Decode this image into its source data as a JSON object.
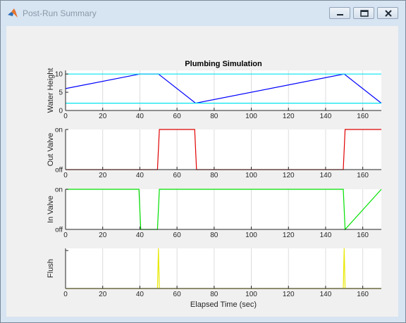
{
  "window": {
    "title": "Post-Run Summary",
    "controls": [
      "minimize",
      "maximize",
      "close"
    ]
  },
  "chart_data": [
    {
      "type": "line",
      "title": "Plumbing Simulation",
      "ylabel": "Water Height",
      "xlabel": "",
      "xlim": [
        0,
        170
      ],
      "ylim": [
        0,
        11
      ],
      "grid": "vertical",
      "xticks": [
        "0",
        "20",
        "40",
        "60",
        "80",
        "100",
        "120",
        "140",
        "160"
      ],
      "yticks": [
        "0",
        "5",
        "10"
      ],
      "series": [
        {
          "color": "#0000ff",
          "x": [
            0,
            40,
            50,
            70,
            150,
            170
          ],
          "y": [
            6,
            10,
            10,
            2,
            10,
            2
          ]
        },
        {
          "color": "#00e5ee",
          "x": [
            0,
            170
          ],
          "y": [
            10,
            10
          ]
        },
        {
          "color": "#00e5ee",
          "x": [
            0,
            170
          ],
          "y": [
            2,
            2
          ]
        }
      ]
    },
    {
      "type": "line",
      "ylabel": "Out Valve",
      "xlabel": "",
      "xlim": [
        0,
        170
      ],
      "ylim": [
        0,
        1
      ],
      "grid": "vertical",
      "xticks": [
        "0",
        "20",
        "40",
        "60",
        "80",
        "100",
        "120",
        "140",
        "160"
      ],
      "yticks": [
        "off",
        "on"
      ],
      "series": [
        {
          "color": "#e00000",
          "x": [
            0,
            49.5,
            50.5,
            69.5,
            70.5,
            149.5,
            150.5,
            170
          ],
          "y": [
            0,
            0,
            1,
            1,
            0,
            0,
            1,
            1
          ]
        }
      ]
    },
    {
      "type": "line",
      "ylabel": "In Valve",
      "xlabel": "",
      "xlim": [
        0,
        170
      ],
      "ylim": [
        0,
        1
      ],
      "grid": "vertical",
      "xticks": [
        "0",
        "20",
        "40",
        "60",
        "80",
        "100",
        "120",
        "140",
        "160"
      ],
      "yticks": [
        "off",
        "on"
      ],
      "series": [
        {
          "color": "#00e000",
          "x": [
            0,
            39.5,
            40.5,
            49.5,
            50.5,
            149.5,
            150.5,
            170
          ],
          "y": [
            1,
            1,
            0,
            0,
            1,
            1,
            0,
            1
          ]
        }
      ]
    },
    {
      "type": "line",
      "ylabel": "Flush",
      "xlabel": "Elapsed Time (sec)",
      "xlim": [
        0,
        170
      ],
      "ylim": [
        0,
        1
      ],
      "grid": "vertical",
      "xticks": [
        "0",
        "20",
        "40",
        "60",
        "80",
        "100",
        "120",
        "140",
        "160"
      ],
      "yticks": [],
      "series": [
        {
          "color": "#e8e800",
          "x": [
            0,
            49.5,
            50,
            50.5,
            149.5,
            150,
            150.5,
            170
          ],
          "y": [
            0,
            0,
            1,
            0,
            0,
            1,
            0,
            0
          ]
        }
      ]
    }
  ]
}
